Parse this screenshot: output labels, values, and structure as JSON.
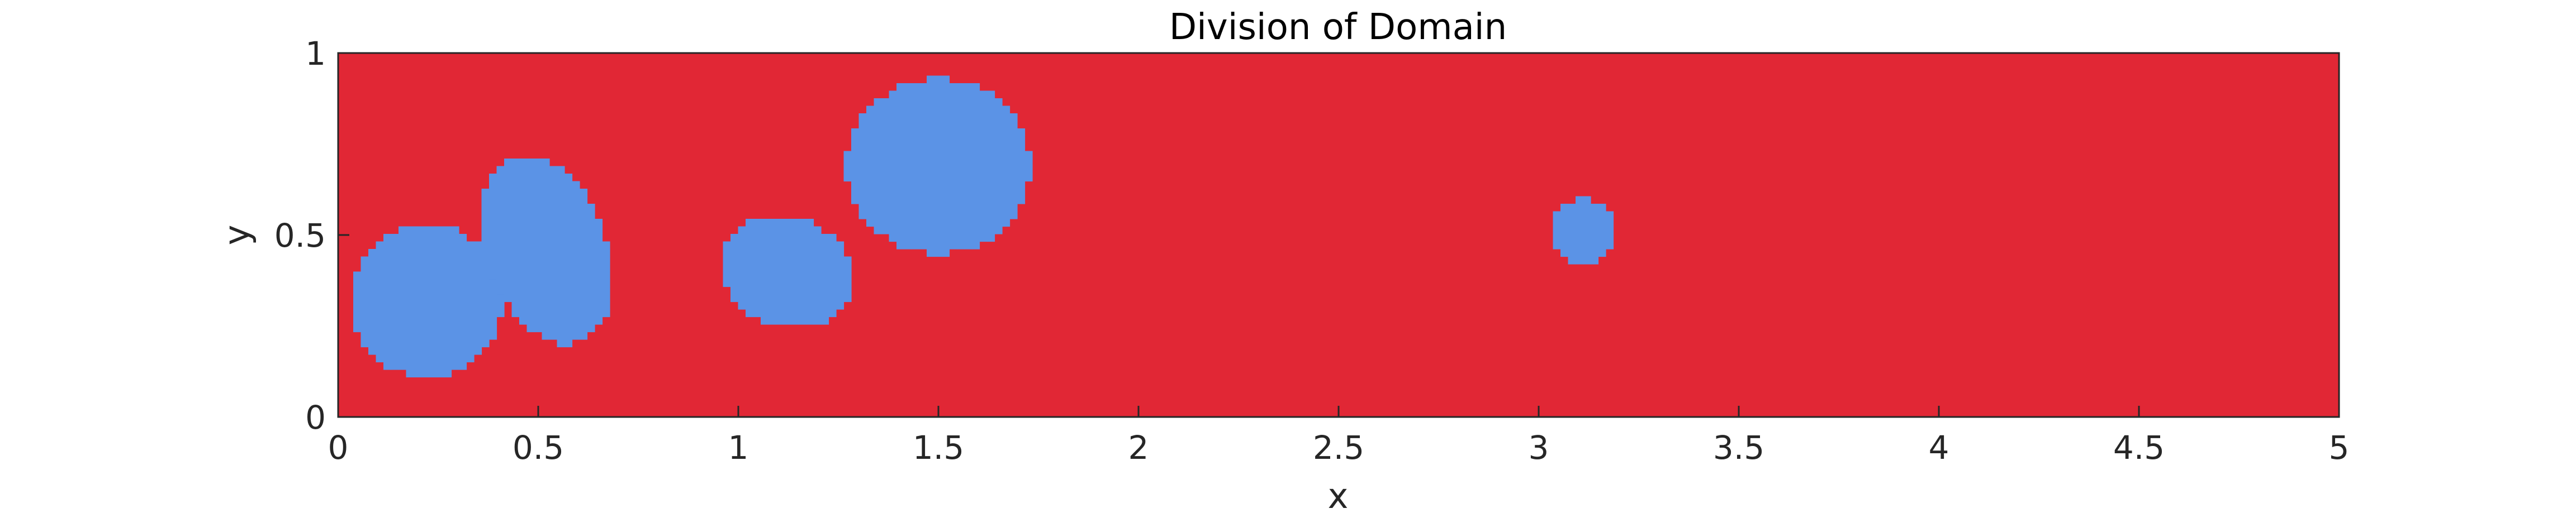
{
  "chart_data": {
    "type": "heatmap",
    "title": "Division of Domain",
    "xlabel": "x",
    "ylabel": "y",
    "xlim": [
      0,
      5
    ],
    "ylim": [
      0,
      1
    ],
    "xticks": [
      "0",
      "0.5",
      "1",
      "1.5",
      "2",
      "2.5",
      "3",
      "3.5",
      "4",
      "4.5",
      "5"
    ],
    "yticks": [
      "0",
      "0.5",
      "1"
    ],
    "grid": false,
    "legend": "none",
    "colors": {
      "background_region": "#E12735",
      "inclusion_region": "#5B93E6",
      "axis": "#262626"
    },
    "regions": [
      {
        "shape": "ellipse",
        "cx": 0.22,
        "cy": 0.32,
        "rx": 0.19,
        "ry": 0.21,
        "angle": 0
      },
      {
        "shape": "ellipse",
        "cx": 0.52,
        "cy": 0.46,
        "rx": 0.15,
        "ry": 0.27,
        "angle": 20
      },
      {
        "shape": "ellipse",
        "cx": 1.12,
        "cy": 0.4,
        "rx": 0.17,
        "ry": 0.15,
        "angle": -20
      },
      {
        "shape": "ellipse",
        "cx": 1.5,
        "cy": 0.69,
        "rx": 0.23,
        "ry": 0.24,
        "angle": 0
      },
      {
        "shape": "ellipse",
        "cx": 3.11,
        "cy": 0.51,
        "rx": 0.08,
        "ry": 0.09,
        "angle": 0
      }
    ]
  }
}
